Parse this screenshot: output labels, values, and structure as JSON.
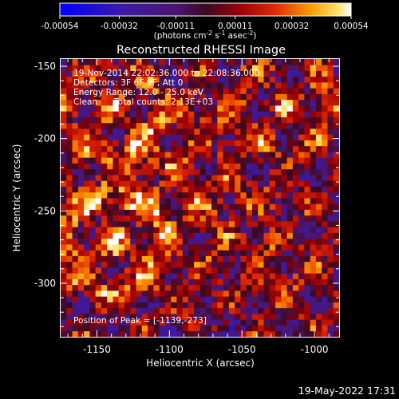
{
  "colorbar": {
    "ticks": [
      "-0.00054",
      "-0.00032",
      "-0.00011",
      "0.00011",
      "0.00032",
      "0.00054"
    ],
    "unit_prefix": "(photons cm",
    "unit_exp1": "-2",
    "unit_mid": " s",
    "unit_exp2": "-1",
    "unit_tail": " asec",
    "unit_exp3": "-2",
    "unit_close": ")",
    "range": [
      -0.00054,
      0.00054
    ],
    "colormap": "rhessi-signed (blue-purple-red-yellow-white)"
  },
  "chart_data": {
    "type": "heatmap",
    "title": "Reconstructed RHESSI Image",
    "xlabel": "Heliocentric X (arcsec)",
    "ylabel": "Heliocentric Y (arcsec)",
    "xlim": [
      -1175,
      -983
    ],
    "ylim": [
      -337,
      -145
    ],
    "x_ticks": [
      "-1150",
      "-1100",
      "-1050",
      "-1000"
    ],
    "y_ticks": [
      "-150",
      "-200",
      "-250",
      "-300"
    ],
    "grid": false,
    "peak_position": [
      -1139,
      -273
    ],
    "description_values": {
      "pixel_size_arcsec": 4
    }
  },
  "annotations": {
    "time_range": "19-Nov-2014 22:02:36.000 to 22:08:36.000",
    "detectors": "Detectors: 3F 6F 9F, Att 0",
    "energy": "Energy Range: 12.0 - 25.0 keV",
    "clean": "Clean      Total counts: 2.13E+03",
    "peak": "Position of Peak = [-1139,-273]"
  },
  "footer_timestamp": "19-May-2022 17:31"
}
